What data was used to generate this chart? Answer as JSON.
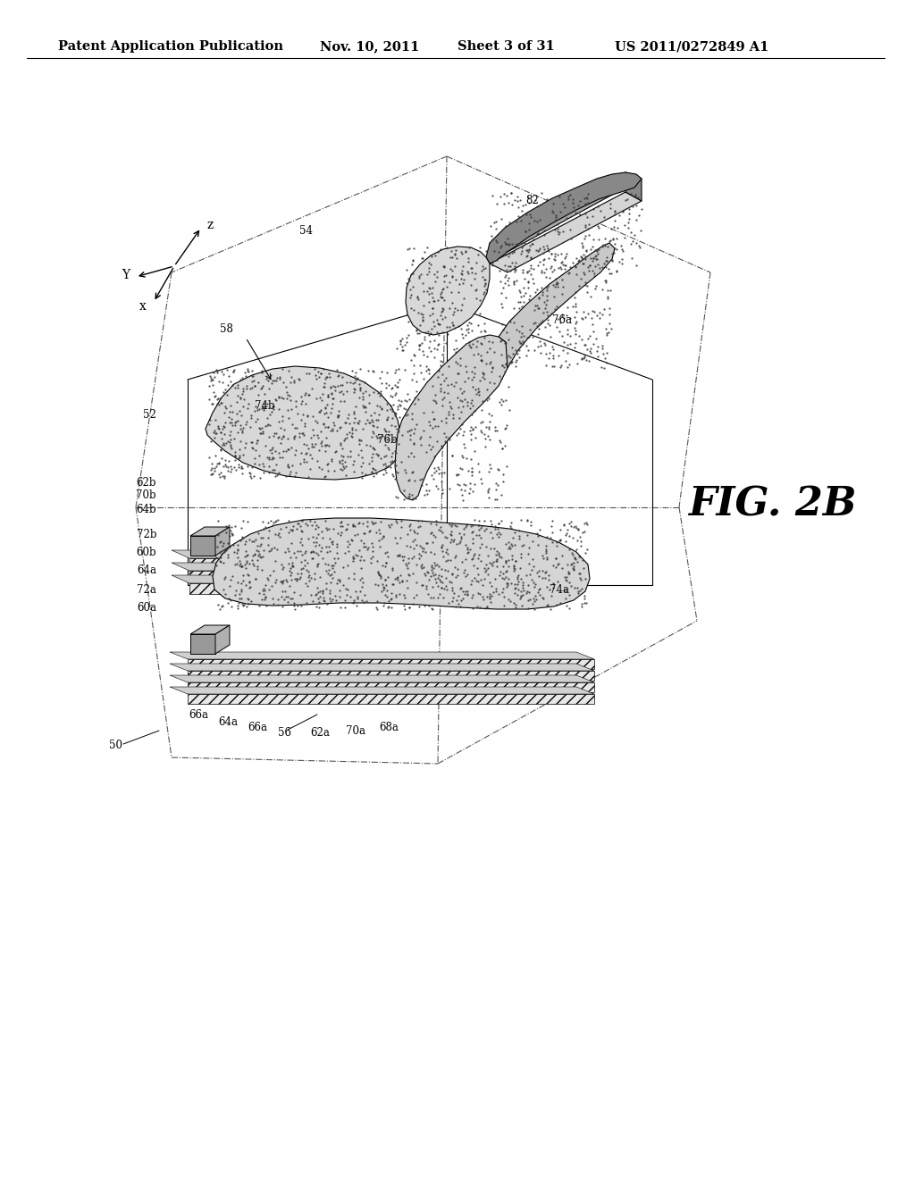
{
  "background_color": "#ffffff",
  "header_text": "Patent Application Publication",
  "header_date": "Nov. 10, 2011",
  "header_sheet": "Sheet 3 of 31",
  "header_patent": "US 2011/0272849 A1",
  "fig_label": "FIG. 2B",
  "label_fontsize": 8.5,
  "fig_label_fontsize": 32,
  "header_fontsize": 10.5
}
